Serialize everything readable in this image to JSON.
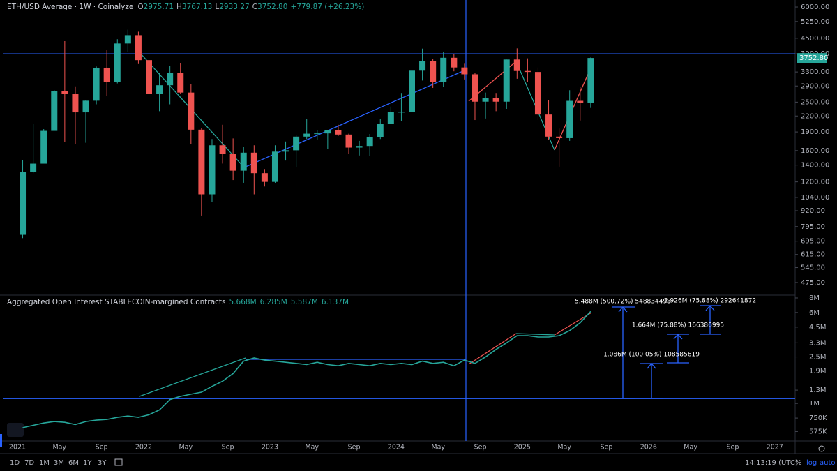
{
  "chart_data": [
    {
      "type": "candlestick",
      "title": "ETH/USD Average · 1W · Coinalyze",
      "legend": [
        {
          "label": "O",
          "value": "2975.71"
        },
        {
          "label": "H",
          "value": "3767.13"
        },
        {
          "label": "L",
          "value": "2933.27"
        },
        {
          "label": "C",
          "value": "3752.80"
        }
      ],
      "change": "+779.87 (+26.23%)",
      "log_scale": true,
      "up_color": "#26a69a",
      "down_color": "#ef5350",
      "ylim": [
        423,
        6400
      ],
      "yticks": [
        {
          "value": 6000,
          "label": "6000.00"
        },
        {
          "value": 5250,
          "label": "5250.00"
        },
        {
          "value": 4500,
          "label": "4500.00"
        },
        {
          "value": 3900,
          "label": "3900.00"
        },
        {
          "value": 3300,
          "label": "3300.00"
        },
        {
          "value": 2900,
          "label": "2900.00"
        },
        {
          "value": 2500,
          "label": "2500.00"
        },
        {
          "value": 2200,
          "label": "2200.00"
        },
        {
          "value": 1900,
          "label": "1900.00"
        },
        {
          "value": 1600,
          "label": "1600.00"
        },
        {
          "value": 1400,
          "label": "1400.00"
        },
        {
          "value": 1200,
          "label": "1200.00"
        },
        {
          "value": 1040,
          "label": "1040.00"
        },
        {
          "value": 920,
          "label": "920.00"
        },
        {
          "value": 795,
          "label": "795.00"
        },
        {
          "value": 695,
          "label": "695.00"
        },
        {
          "value": 615,
          "label": "615.00"
        },
        {
          "value": 545,
          "label": "545.00"
        },
        {
          "value": 475,
          "label": "475.00"
        }
      ],
      "last_price": {
        "value": 3752.8,
        "label": "3752.80"
      },
      "hline": 3900,
      "candles": [
        [
          737,
          1470,
          715,
          1312
        ],
        [
          1312,
          2040,
          1300,
          1419
        ],
        [
          1419,
          1950,
          1450,
          1919
        ],
        [
          1919,
          2790,
          1930,
          2773
        ],
        [
          2773,
          4380,
          1730,
          2706
        ],
        [
          2706,
          2890,
          1700,
          2275
        ],
        [
          2275,
          2550,
          1720,
          2533
        ],
        [
          2533,
          3470,
          2450,
          3433
        ],
        [
          3433,
          4030,
          2650,
          3000
        ],
        [
          3000,
          4460,
          2970,
          4288
        ],
        [
          4288,
          4870,
          3960,
          4630
        ],
        [
          4630,
          4780,
          3550,
          3680
        ],
        [
          3680,
          3900,
          2160,
          2690
        ],
        [
          2690,
          3280,
          2300,
          2920
        ],
        [
          2920,
          3480,
          2450,
          3280
        ],
        [
          3280,
          3580,
          2700,
          2730
        ],
        [
          2730,
          2950,
          1700,
          1940
        ],
        [
          1940,
          1975,
          880,
          1070
        ],
        [
          1070,
          1780,
          1000,
          1680
        ],
        [
          1680,
          2030,
          1420,
          1550
        ],
        [
          1550,
          1790,
          1220,
          1330
        ],
        [
          1330,
          1660,
          1190,
          1570
        ],
        [
          1570,
          1680,
          1070,
          1300
        ],
        [
          1300,
          1350,
          1150,
          1200
        ],
        [
          1200,
          1680,
          1190,
          1585
        ],
        [
          1585,
          1740,
          1460,
          1605
        ],
        [
          1605,
          1850,
          1370,
          1820
        ],
        [
          1820,
          2140,
          1780,
          1870
        ],
        [
          1870,
          1930,
          1760,
          1875
        ],
        [
          1875,
          1930,
          1620,
          1935
        ],
        [
          1935,
          2030,
          1830,
          1855
        ],
        [
          1855,
          1870,
          1550,
          1645
        ],
        [
          1645,
          1750,
          1530,
          1670
        ],
        [
          1670,
          1865,
          1520,
          1815
        ],
        [
          1815,
          2135,
          1780,
          2050
        ],
        [
          2050,
          2400,
          2040,
          2280
        ],
        [
          2280,
          2720,
          2100,
          2285
        ],
        [
          2285,
          3520,
          2250,
          3340
        ],
        [
          3340,
          4090,
          3050,
          3640
        ],
        [
          3640,
          3720,
          2850,
          3000
        ],
        [
          3000,
          3980,
          2870,
          3760
        ],
        [
          3760,
          3890,
          3320,
          3440
        ],
        [
          3440,
          3560,
          3080,
          3230
        ],
        [
          3230,
          3280,
          2120,
          2510
        ],
        [
          2510,
          2730,
          2150,
          2600
        ],
        [
          2600,
          2720,
          2300,
          2510
        ],
        [
          2510,
          3700,
          2350,
          3700
        ],
        [
          3700,
          4100,
          3100,
          3330
        ],
        [
          3330,
          3740,
          3000,
          3300
        ],
        [
          3300,
          3440,
          2120,
          2230
        ],
        [
          2230,
          2550,
          1760,
          1820
        ],
        [
          1820,
          1960,
          1380,
          1795
        ],
        [
          1795,
          2790,
          1750,
          2530
        ],
        [
          2530,
          2880,
          2110,
          2490
        ],
        [
          2490,
          3770,
          2370,
          3752.8
        ]
      ]
    },
    {
      "type": "line",
      "title": "Aggregated Open Interest STABLECOIN-margined Contracts",
      "legend": [
        "5.668M",
        "6.285M",
        "5.587M",
        "6.137M"
      ],
      "log_scale": true,
      "color": "#26a69a",
      "ylim": [
        477000,
        8450000
      ],
      "yticks": [
        {
          "value": 8000000,
          "label": "8M"
        },
        {
          "value": 6000000,
          "label": "6M"
        },
        {
          "value": 4500000,
          "label": "4.5M"
        },
        {
          "value": 3300000,
          "label": "3.3M"
        },
        {
          "value": 2500000,
          "label": "2.5M"
        },
        {
          "value": 1900000,
          "label": "1.9M"
        },
        {
          "value": 1300000,
          "label": "1.3M"
        },
        {
          "value": 1000000,
          "label": "1M"
        },
        {
          "value": 750000,
          "label": "750K"
        },
        {
          "value": 575000,
          "label": "575K"
        }
      ],
      "hline": 1100000,
      "values": [
        620000,
        650000,
        680000,
        700000,
        690000,
        660000,
        700000,
        720000,
        730000,
        760000,
        780000,
        760000,
        800000,
        880000,
        1080000,
        1150000,
        1200000,
        1250000,
        1400000,
        1550000,
        1800000,
        2300000,
        2450000,
        2350000,
        2300000,
        2250000,
        2200000,
        2150000,
        2250000,
        2150000,
        2100000,
        2200000,
        2150000,
        2100000,
        2200000,
        2150000,
        2200000,
        2150000,
        2300000,
        2200000,
        2250000,
        2100000,
        2350000,
        2200000,
        2500000,
        2900000,
        3300000,
        3800000,
        3800000,
        3700000,
        3700000,
        3800000,
        4200000,
        4900000,
        6137000
      ],
      "annotations": [
        "5.488M (500.72%) 548834493",
        "1.086M (100.05%) 108585619",
        "1.664M (75.88%) 166386995",
        "2.926M (75.88%) 292641872"
      ]
    }
  ],
  "time_axis": [
    "2021",
    "May",
    "Sep",
    "2022",
    "May",
    "Sep",
    "2023",
    "May",
    "Sep",
    "2024",
    "May",
    "Sep",
    "2025",
    "May",
    "Sep",
    "2026",
    "May",
    "Sep",
    "2027"
  ],
  "toolbar": {
    "ranges": [
      "1D",
      "7D",
      "1M",
      "3M",
      "6M",
      "1Y",
      "3Y"
    ],
    "clock": "14:13:19 (UTC)",
    "options": [
      "%",
      "log",
      "auto"
    ]
  }
}
